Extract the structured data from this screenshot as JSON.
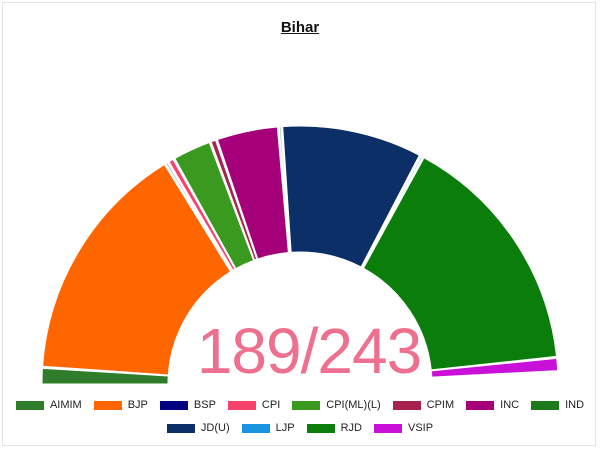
{
  "chart_data": {
    "type": "parliament-semicircle",
    "title": "Bihar",
    "tally_label": "189/243",
    "total_seats": 243,
    "parties": [
      {
        "name": "AIMIM",
        "seats": 5,
        "color": "#2f7d2a"
      },
      {
        "name": "BJP",
        "seats": 74,
        "color": "#ff6600"
      },
      {
        "name": "BSP",
        "seats": 1,
        "color": "#000080"
      },
      {
        "name": "CPI",
        "seats": 2,
        "color": "#f7426c"
      },
      {
        "name": "CPI(ML)(L)",
        "seats": 12,
        "color": "#3a9a20"
      },
      {
        "name": "CPIM",
        "seats": 2,
        "color": "#a8224f"
      },
      {
        "name": "INC",
        "seats": 19,
        "color": "#a5007a"
      },
      {
        "name": "IND",
        "seats": 1,
        "color": "#1b7a1b"
      },
      {
        "name": "JD(U)",
        "seats": 43,
        "color": "#0b2f66"
      },
      {
        "name": "LJP",
        "seats": 1,
        "color": "#1a93e0"
      },
      {
        "name": "RJD",
        "seats": 75,
        "color": "#0a7d0a"
      },
      {
        "name": "VSIP",
        "seats": 4,
        "color": "#c810d8"
      }
    ],
    "legend_rows": [
      [
        "AIMIM",
        "BJP",
        "BSP",
        "CPI",
        "CPI(ML)(L)",
        "CPIM",
        "INC",
        "IND"
      ],
      [
        "JD(U)",
        "LJP",
        "RJD",
        "VSIP"
      ]
    ],
    "legend_placement": "bottom"
  }
}
